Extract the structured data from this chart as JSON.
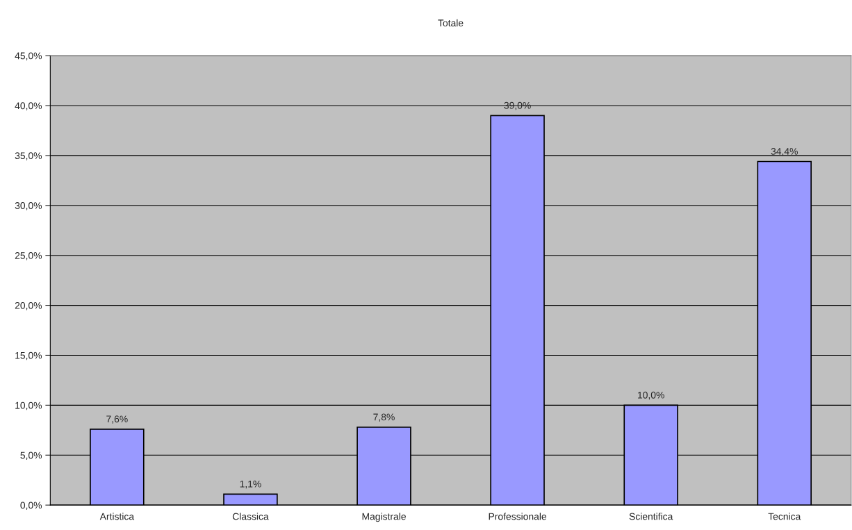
{
  "chart_data": {
    "type": "bar",
    "title": "Totale",
    "categories": [
      "Artistica",
      "Classica",
      "Magistrale",
      "Professionale",
      "Scientifica",
      "Tecnica"
    ],
    "values": [
      7.6,
      1.1,
      7.8,
      39.0,
      10.0,
      34.4
    ],
    "value_labels": [
      "7,6%",
      "1,1%",
      "7,8%",
      "39,0%",
      "10,0%",
      "34,4%"
    ],
    "color": "#9999ff",
    "ylim": [
      0,
      45
    ],
    "yticks": [
      {
        "value": 0,
        "label": "0,0%"
      },
      {
        "value": 5,
        "label": "5,0%"
      },
      {
        "value": 10,
        "label": "10,0%"
      },
      {
        "value": 15,
        "label": "15,0%"
      },
      {
        "value": 20,
        "label": "20,0%"
      },
      {
        "value": 25,
        "label": "25,0%"
      },
      {
        "value": 30,
        "label": "30,0%"
      },
      {
        "value": 35,
        "label": "35,0%"
      },
      {
        "value": 40,
        "label": "40,0%"
      },
      {
        "value": 45,
        "label": "45,0%"
      }
    ],
    "grid": "y",
    "legend": false
  }
}
